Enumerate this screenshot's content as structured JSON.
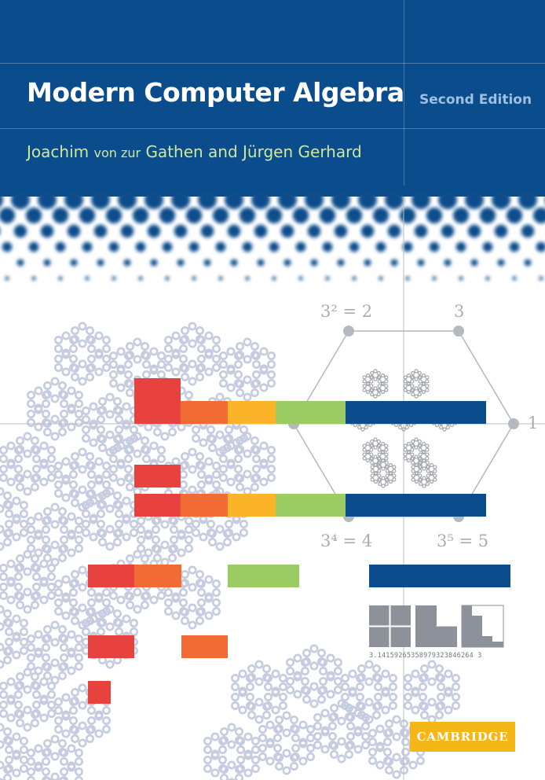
{
  "cover": {
    "title": "Modern Computer Algebra",
    "edition": "Second Edition",
    "authors": {
      "first": "Joachim",
      "particle": "von zur",
      "rest": "Gathen and Jürgen Gerhard"
    },
    "publisher": "CAMBRIDGE",
    "digits": "3.14159265358979323846264 3"
  },
  "diagram": {
    "label_top_left": "3² = 2",
    "label_top_right": "3",
    "label_right": "1",
    "label_bottom_left": "3⁴ = 4",
    "label_bottom_right": "3⁵ = 5"
  },
  "colors": {
    "band": "#0b4d8c",
    "red": "#e8423f",
    "orange": "#f26b35",
    "yellow": "#fbb42a",
    "green": "#9bcc63",
    "blue": "#0b4d8c",
    "logo": "#f5b617",
    "fractal": "#c5cce0"
  }
}
